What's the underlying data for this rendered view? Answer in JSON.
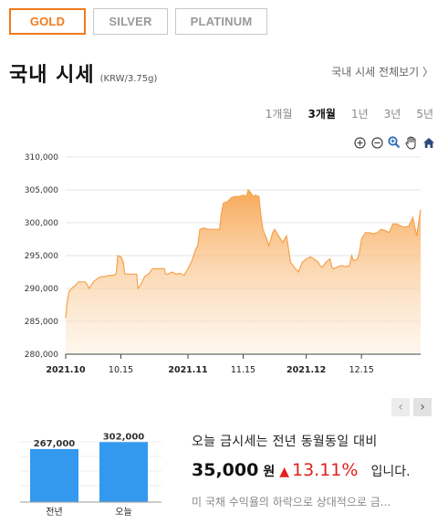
{
  "tabs": [
    {
      "label": "GOLD",
      "active": true
    },
    {
      "label": "SILVER",
      "active": false
    },
    {
      "label": "PLATINUM",
      "active": false
    }
  ],
  "header": {
    "title": "국내 시세",
    "unit": "(KRW/3.75g)",
    "view_all": "국내 시세 전체보기 〉"
  },
  "periods": [
    {
      "label": "1개월",
      "active": false
    },
    {
      "label": "3개월",
      "active": true
    },
    {
      "label": "1년",
      "active": false
    },
    {
      "label": "3년",
      "active": false
    },
    {
      "label": "5년",
      "active": false
    }
  ],
  "tools": [
    "zoom-in-icon",
    "zoom-out-icon",
    "magnify-icon",
    "pan-hand-icon",
    "home-icon"
  ],
  "colors": {
    "accent": "#f07a1c",
    "area_line": "#f5a24c",
    "bar": "#3399ee",
    "up": "#e02020"
  },
  "chart_data": [
    {
      "type": "area",
      "x_ticks": [
        "2021.10",
        "10.15",
        "2021.11",
        "11.15",
        "2021.12",
        "12.15"
      ],
      "x_tick_bold": [
        true,
        false,
        true,
        false,
        true,
        false
      ],
      "y_ticks": [
        "310,000",
        "305,000",
        "300,000",
        "295,000",
        "290,000",
        "285,000",
        "280,000"
      ],
      "ylim": [
        280000,
        310000
      ],
      "x_range": [
        0,
        90
      ],
      "x_tick_positions": [
        0,
        14,
        31,
        45,
        61,
        75
      ],
      "series": [
        {
          "values": [
            [
              0,
              285500
            ],
            [
              0.4,
              288000
            ],
            [
              0.8,
              289500
            ],
            [
              1.5,
              290000
            ],
            [
              2.5,
              290500
            ],
            [
              3.2,
              291000
            ],
            [
              5,
              291000
            ],
            [
              5.5,
              290500
            ],
            [
              6,
              290000
            ],
            [
              6.5,
              290500
            ],
            [
              7,
              291000
            ],
            [
              8,
              291500
            ],
            [
              9,
              291800
            ],
            [
              10,
              291800
            ],
            [
              11,
              292000
            ],
            [
              12,
              292000
            ],
            [
              12.8,
              292200
            ],
            [
              13.2,
              295000
            ],
            [
              14,
              294800
            ],
            [
              14.6,
              294000
            ],
            [
              15,
              292200
            ],
            [
              17,
              292200
            ],
            [
              18,
              292200
            ],
            [
              18.3,
              290000
            ],
            [
              19,
              290500
            ],
            [
              20,
              291800
            ],
            [
              21,
              292200
            ],
            [
              22,
              293000
            ],
            [
              24,
              293000
            ],
            [
              25,
              293000
            ],
            [
              25.3,
              292200
            ],
            [
              26,
              292200
            ],
            [
              27,
              292500
            ],
            [
              28,
              292200
            ],
            [
              29,
              292300
            ],
            [
              30,
              292000
            ],
            [
              30.5,
              292500
            ],
            [
              31,
              293000
            ],
            [
              32,
              294200
            ],
            [
              33,
              296000
            ],
            [
              33.5,
              296500
            ],
            [
              34,
              299000
            ],
            [
              35,
              299200
            ],
            [
              36,
              299000
            ],
            [
              37,
              299000
            ],
            [
              38,
              299000
            ],
            [
              39,
              299000
            ],
            [
              39.5,
              301500
            ],
            [
              40,
              303000
            ],
            [
              41,
              303200
            ],
            [
              42,
              303800
            ],
            [
              43,
              304000
            ],
            [
              44,
              304000
            ],
            [
              45,
              304200
            ],
            [
              45.8,
              304000
            ],
            [
              46.3,
              305000
            ],
            [
              47,
              304500
            ],
            [
              47.5,
              304000
            ],
            [
              48,
              304200
            ],
            [
              49,
              304000
            ],
            [
              49.5,
              301000
            ],
            [
              50,
              299000
            ],
            [
              51,
              297500
            ],
            [
              51.5,
              296500
            ],
            [
              52,
              297500
            ],
            [
              52.5,
              298500
            ],
            [
              53,
              299000
            ],
            [
              54,
              298000
            ],
            [
              55,
              297000
            ],
            [
              56,
              298000
            ],
            [
              56.5,
              296000
            ],
            [
              57,
              294000
            ],
            [
              58,
              293200
            ],
            [
              59,
              292500
            ],
            [
              60,
              294000
            ],
            [
              61,
              294500
            ],
            [
              62,
              294800
            ],
            [
              63,
              294500
            ],
            [
              64,
              294000
            ],
            [
              64.5,
              293500
            ],
            [
              65,
              293200
            ],
            [
              66,
              294000
            ],
            [
              67,
              294500
            ],
            [
              67.5,
              293200
            ],
            [
              68,
              293000
            ],
            [
              69,
              293300
            ],
            [
              70,
              293500
            ],
            [
              71,
              293300
            ],
            [
              72,
              293500
            ],
            [
              72.5,
              295000
            ],
            [
              73,
              294200
            ],
            [
              74,
              294500
            ],
            [
              74.5,
              295500
            ],
            [
              75,
              297500
            ],
            [
              76,
              298500
            ],
            [
              77,
              298500
            ],
            [
              78,
              298300
            ],
            [
              79,
              298500
            ],
            [
              80,
              299000
            ],
            [
              81,
              298800
            ],
            [
              82,
              298500
            ],
            [
              83,
              299800
            ],
            [
              84,
              299800
            ],
            [
              85,
              299500
            ],
            [
              86,
              299300
            ],
            [
              87,
              299500
            ],
            [
              88,
              300800
            ],
            [
              89,
              298000
            ],
            [
              90,
              302000
            ]
          ]
        }
      ]
    },
    {
      "type": "bar",
      "categories": [
        "전년",
        "오늘"
      ],
      "values": [
        267000,
        302000
      ],
      "value_labels": [
        "267,000",
        "302,000"
      ],
      "ylim": [
        0,
        340000
      ]
    }
  ],
  "summary": {
    "line1": "오늘 금시세는 전년 동월동일 대비",
    "amount": "35,000",
    "won": "원",
    "up_arrow": "▲",
    "percent": "13.11%",
    "ipnida": "입니다.",
    "line3": "미 국채 수익율의 하락으로 상대적으로 금..."
  },
  "nav": {
    "prev": "‹",
    "next": "›"
  }
}
